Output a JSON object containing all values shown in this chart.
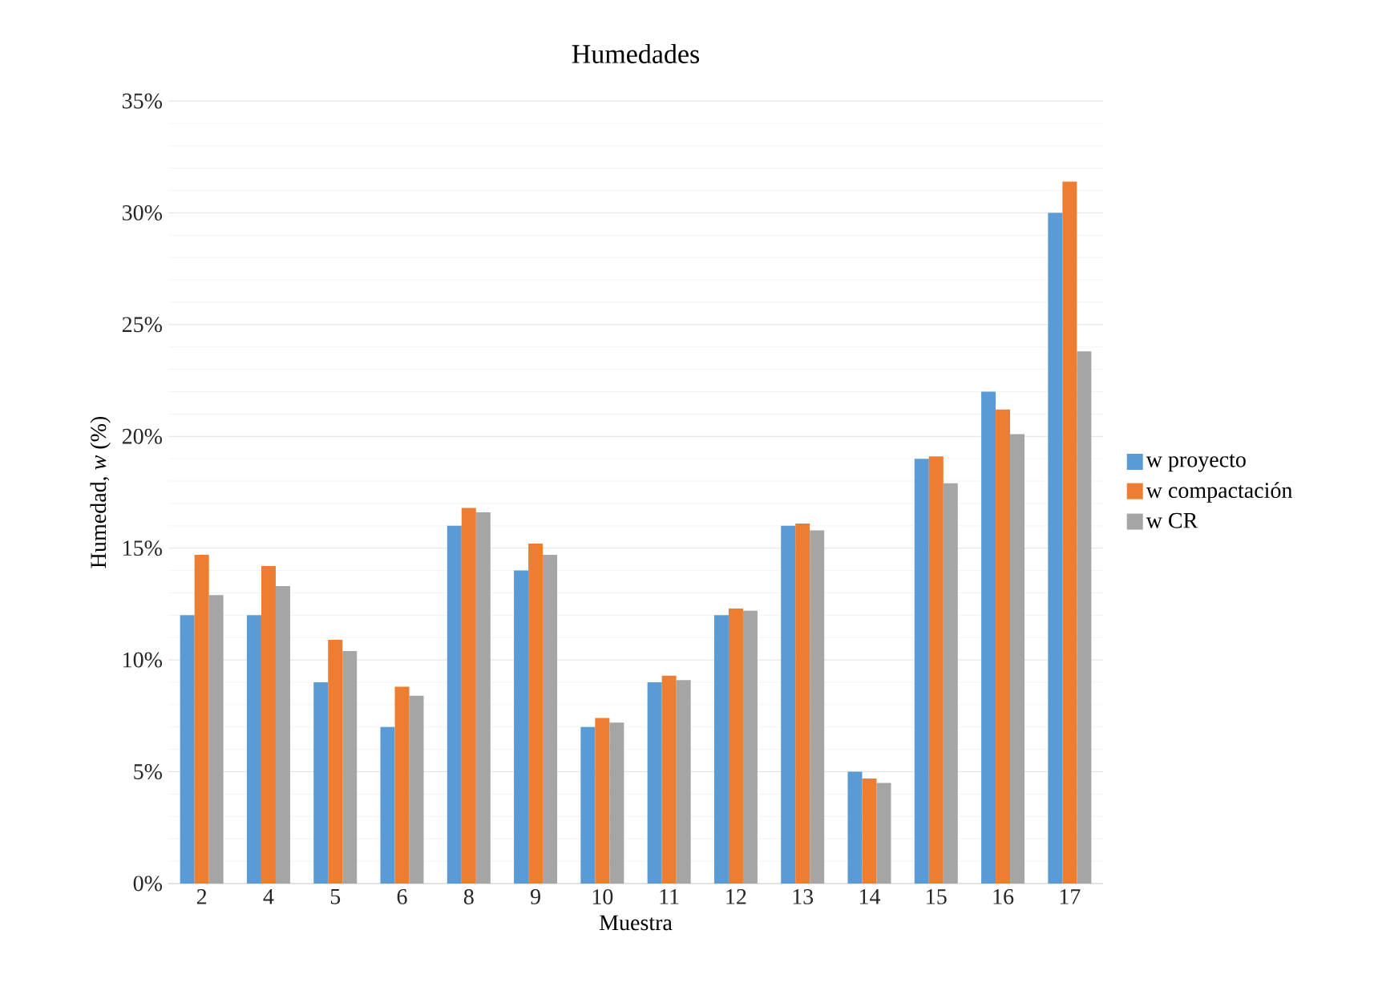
{
  "chart_data": {
    "type": "bar",
    "title": "Humedades",
    "xlabel": "Muestra",
    "ylabel": "Humedad, *w* (%)",
    "categories": [
      "2",
      "4",
      "5",
      "6",
      "8",
      "9",
      "10",
      "11",
      "12",
      "13",
      "14",
      "15",
      "16",
      "17"
    ],
    "series": [
      {
        "name": "w proyecto",
        "color": "#5b9bd5",
        "values": [
          12,
          12,
          9,
          7,
          16,
          14,
          7,
          9,
          12,
          16,
          5,
          19,
          22,
          30
        ]
      },
      {
        "name": "w compactación",
        "color": "#ed7d31",
        "values": [
          14.7,
          14.2,
          10.9,
          8.8,
          16.8,
          15.2,
          7.4,
          9.3,
          12.3,
          16.1,
          4.7,
          19.1,
          21.2,
          31.4
        ]
      },
      {
        "name": "w CR",
        "color": "#a5a5a5",
        "values": [
          12.9,
          13.3,
          10.4,
          8.4,
          16.6,
          14.7,
          7.2,
          9.1,
          12.2,
          15.8,
          4.5,
          17.9,
          20.1,
          23.8
        ]
      }
    ],
    "ylim": [
      0,
      35
    ],
    "yticks": [
      {
        "value": 0,
        "label": "0%"
      },
      {
        "value": 5,
        "label": "5%"
      },
      {
        "value": 10,
        "label": "10%"
      },
      {
        "value": 15,
        "label": "15%"
      },
      {
        "value": 20,
        "label": "20%"
      },
      {
        "value": 25,
        "label": "25%"
      },
      {
        "value": 30,
        "label": "30%"
      },
      {
        "value": 35,
        "label": "35%"
      }
    ],
    "grid": "y",
    "legend": "right"
  }
}
